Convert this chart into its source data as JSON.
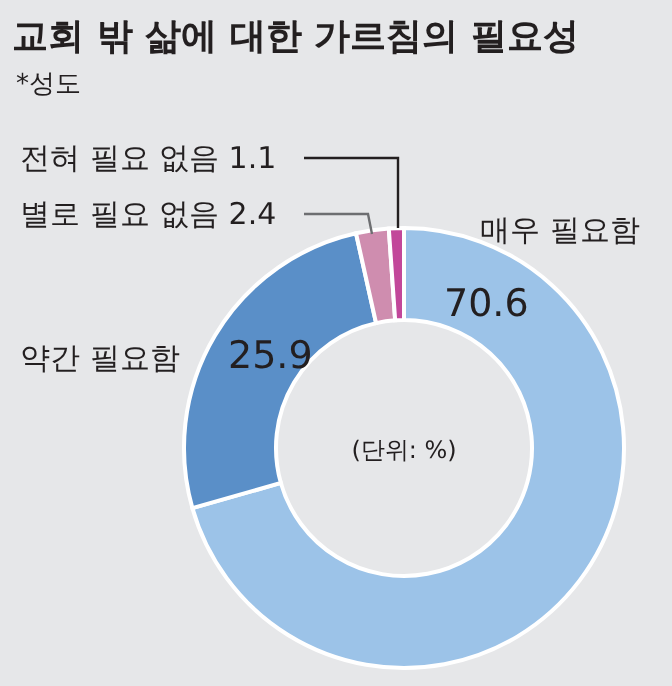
{
  "chart_data": {
    "type": "donut",
    "title": "교회 밖 삶에 대한 가르침의 필요성",
    "subtitle": "*성도",
    "categories": [
      "매우 필요함",
      "약간 필요함",
      "별로 필요 없음 2.4",
      "전혀 필요 없음 1.1"
    ],
    "values": [
      70.6,
      25.9,
      2.4,
      1.1
    ],
    "colors": [
      "#9cc3e8",
      "#5a8fc8",
      "#cf8daf",
      "#c2479a"
    ],
    "value_labels": [
      "70.6",
      "25.9",
      null,
      null
    ],
    "annotations": [
      "(단위: %)"
    ]
  }
}
